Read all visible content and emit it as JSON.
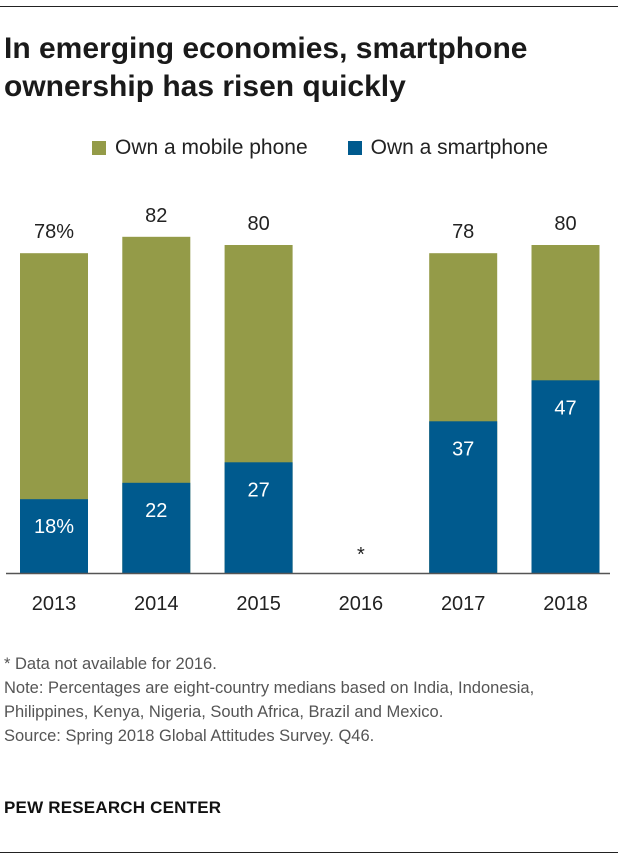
{
  "title": "In emerging economies, smartphone ownership has risen quickly",
  "legend": [
    {
      "label": "Own a mobile phone",
      "color": "#949b48"
    },
    {
      "label": "Own a smartphone",
      "color": "#005a8e"
    }
  ],
  "chart_data": {
    "type": "bar",
    "stacking": "overlay",
    "categories": [
      "2013",
      "2014",
      "2015",
      "2016",
      "2017",
      "2018"
    ],
    "series": [
      {
        "name": "Own a mobile phone",
        "color": "#949b48",
        "values": [
          78,
          82,
          80,
          null,
          78,
          80
        ],
        "labels": [
          "78%",
          "82",
          "80",
          "",
          "78",
          "80"
        ]
      },
      {
        "name": "Own a smartphone",
        "color": "#005a8e",
        "values": [
          18,
          22,
          27,
          null,
          37,
          47
        ],
        "labels": [
          "18%",
          "22",
          "27",
          "",
          "37",
          "47"
        ]
      }
    ],
    "missing_marker": {
      "category": "2016",
      "text": "*"
    },
    "ylim": [
      0,
      100
    ],
    "xlabel": "",
    "ylabel": "",
    "grid": false
  },
  "notes": [
    "* Data not available for 2016.",
    "Note: Percentages are eight-country medians based on India, Indonesia, Philippines, Kenya, Nigeria, South Africa, Brazil and Mexico.",
    "Source: Spring 2018 Global Attitudes Survey. Q46."
  ],
  "source_brand": "PEW RESEARCH CENTER"
}
